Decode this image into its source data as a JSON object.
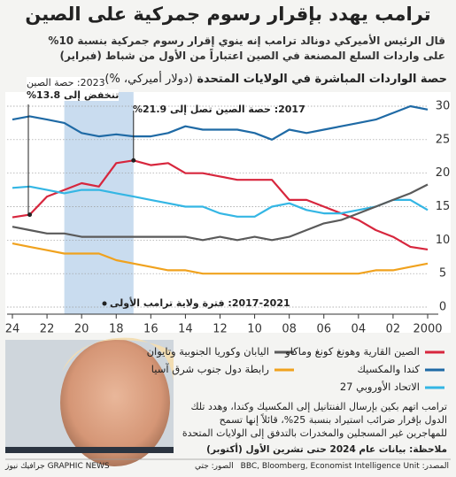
{
  "chart_data": {
    "type": "line",
    "title": "ترامب يهدد بإقرار رسوم جمركية على الصين",
    "subtitle": "قال الرئيس الأميركي دونالد ترامب إنه ينوي إقرار رسوم جمركية بنسبة 10% على واردات السلع المصنعة في الصين اعتباراً من الأول من شباط (فبراير)",
    "chart_title": "حصة الواردات المباشرة في الولايات المتحدة",
    "chart_unit": "(دولار أميركي، %)",
    "x": [
      2000,
      2001,
      2002,
      2003,
      2004,
      2005,
      2006,
      2007,
      2008,
      2009,
      2010,
      2011,
      2012,
      2013,
      2014,
      2015,
      2016,
      2017,
      2018,
      2019,
      2020,
      2021,
      2022,
      2023,
      2024
    ],
    "xlim": [
      2000,
      2024
    ],
    "xticks": [
      {
        "value": 2024,
        "label": "24"
      },
      {
        "value": 2022,
        "label": "22"
      },
      {
        "value": 2020,
        "label": "20"
      },
      {
        "value": 2018,
        "label": "18"
      },
      {
        "value": 2016,
        "label": "16"
      },
      {
        "value": 2014,
        "label": "14"
      },
      {
        "value": 2012,
        "label": "12"
      },
      {
        "value": 2010,
        "label": "10"
      },
      {
        "value": 2008,
        "label": "08"
      },
      {
        "value": 2006,
        "label": "06"
      },
      {
        "value": 2004,
        "label": "04"
      },
      {
        "value": 2002,
        "label": "02"
      },
      2000
    ],
    "ylim": [
      0,
      30
    ],
    "yticks": [
      0,
      5,
      10,
      15,
      20,
      25,
      30
    ],
    "grid": true,
    "series": [
      {
        "name": "الصين القارية وهونغ كونغ وماكاو",
        "color": "#d7263d",
        "values": [
          8.6,
          9,
          10.5,
          11.5,
          13,
          14,
          15,
          16,
          16,
          19,
          19,
          19,
          19.5,
          20,
          20,
          21.5,
          21.2,
          21.9,
          21.5,
          18,
          18.5,
          17.5,
          16.5,
          13.8,
          13.4
        ]
      },
      {
        "name": "كندا والمكسيك",
        "color": "#1f6aa5",
        "values": [
          29.5,
          30,
          29,
          28,
          27.5,
          27,
          26.5,
          26,
          26.5,
          25,
          26,
          26.5,
          26.5,
          26.5,
          27,
          26,
          25.5,
          25.5,
          25.8,
          25.5,
          26,
          27.5,
          28,
          28.5,
          28
        ]
      },
      {
        "name": "الاتحاد الأوروبي 27",
        "color": "#34b6e4",
        "values": [
          14.5,
          16,
          16,
          15,
          14.5,
          14,
          14,
          14.5,
          15.5,
          15,
          13.5,
          13.5,
          14,
          15,
          15,
          15.5,
          16,
          16.5,
          17,
          17.5,
          17.5,
          17,
          17.5,
          18,
          17.8
        ]
      },
      {
        "name": "اليابان وكوريا الجنوبية وتايوان",
        "color": "#5a5a5a",
        "values": [
          18.3,
          17,
          16,
          15,
          14,
          13,
          12.5,
          11.5,
          10.5,
          10,
          10.5,
          10,
          10.5,
          10,
          10.5,
          10.5,
          10.5,
          10.5,
          10.5,
          10.5,
          10.5,
          11,
          11,
          11.5,
          12
        ]
      },
      {
        "name": "رابطة دول جنوب شرق آسيا",
        "color": "#f0a21e",
        "values": [
          6.5,
          6,
          5.5,
          5.5,
          5,
          5,
          5,
          5,
          5,
          5,
          5,
          5,
          5,
          5,
          5.5,
          5.5,
          6,
          6.5,
          7,
          8,
          8,
          8,
          8.5,
          9,
          9.5
        ]
      }
    ],
    "highlight": {
      "x": [
        2017,
        2021
      ],
      "label": "2017-2021: فترة ولاية ترامب الأولى"
    },
    "annotations": [
      {
        "lines": [
          "2023: حصة الصين",
          "تنخفض إلى 13.8%"
        ]
      },
      {
        "lines": [
          "2017: حصة الصين تصل إلى 21.9%"
        ]
      }
    ],
    "body_text": "ترامب اتهم بكين بإرسال الفنتانيل إلى المكسيك وكندا، وهدد تلك الدول بإقرار ضرائب استيراد بنسبة 25%، قائلاً إنها تسمح للمهاجرين غير المسجلين والمخدرات بالتدفق إلى الولايات المتحدة",
    "note": "ملاحظة: بيانات عام 2024 حتى تشرين الأول (أكتوبر)",
    "source": "المصدر: BBC, Bloomberg, Economist Intelligence Unit",
    "photo_credit": "الصور: جتي",
    "brand": "GRAPHIC NEWS جرافيك نيوز"
  }
}
